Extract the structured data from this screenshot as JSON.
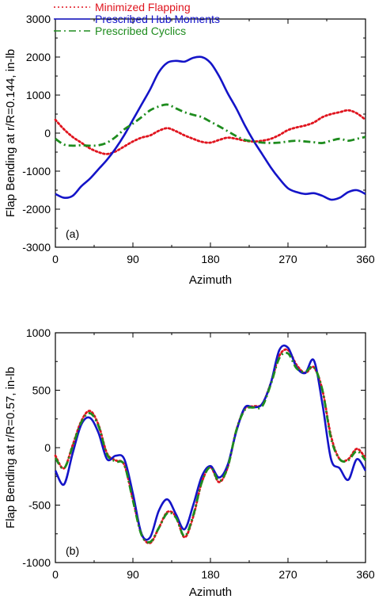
{
  "chart_data": [
    {
      "type": "line",
      "panel_label": "(a)",
      "xlabel": "Azimuth",
      "ylabel": "Flap Bending at r/R=0.144, in-lb",
      "xlim": [
        0,
        360
      ],
      "ylim": [
        -3000,
        3000
      ],
      "x_ticks": [
        0,
        90,
        180,
        270,
        360
      ],
      "y_ticks": [
        -3000,
        -2000,
        -1000,
        0,
        1000,
        2000,
        3000
      ],
      "legend_position": "top-left",
      "series": [
        {
          "name": "Minimized Flapping",
          "color": "#e0141e",
          "style": "dotted",
          "x": [
            0,
            10,
            20,
            30,
            40,
            50,
            60,
            70,
            80,
            90,
            100,
            110,
            120,
            130,
            140,
            150,
            160,
            170,
            180,
            190,
            200,
            210,
            220,
            230,
            240,
            250,
            260,
            270,
            280,
            290,
            300,
            310,
            320,
            330,
            340,
            350,
            360
          ],
          "y": [
            350,
            100,
            -100,
            -250,
            -400,
            -500,
            -550,
            -480,
            -350,
            -220,
            -120,
            -60,
            60,
            130,
            50,
            -60,
            -150,
            -230,
            -250,
            -180,
            -120,
            -150,
            -200,
            -220,
            -200,
            -150,
            -50,
            80,
            150,
            200,
            280,
            420,
            500,
            550,
            600,
            520,
            350
          ]
        },
        {
          "name": "Prescribed Hub Moments",
          "color": "#1414c8",
          "style": "solid",
          "x": [
            0,
            10,
            20,
            30,
            40,
            50,
            60,
            70,
            80,
            90,
            100,
            110,
            120,
            130,
            140,
            150,
            160,
            170,
            180,
            190,
            200,
            210,
            220,
            230,
            240,
            250,
            260,
            270,
            280,
            290,
            300,
            310,
            320,
            330,
            340,
            350,
            360
          ],
          "y": [
            -1600,
            -1700,
            -1650,
            -1400,
            -1200,
            -950,
            -700,
            -400,
            -50,
            350,
            750,
            1150,
            1600,
            1850,
            1900,
            1880,
            1980,
            2000,
            1850,
            1500,
            1050,
            650,
            200,
            -200,
            -550,
            -900,
            -1200,
            -1450,
            -1550,
            -1600,
            -1580,
            -1650,
            -1750,
            -1700,
            -1550,
            -1500,
            -1600
          ]
        },
        {
          "name": "Prescribed Cyclics",
          "color": "#1e8c1e",
          "style": "dashdot",
          "x": [
            0,
            10,
            20,
            30,
            40,
            50,
            60,
            70,
            80,
            90,
            100,
            110,
            120,
            130,
            140,
            150,
            160,
            170,
            180,
            190,
            200,
            210,
            220,
            230,
            240,
            250,
            260,
            270,
            280,
            290,
            300,
            310,
            320,
            330,
            340,
            350,
            360
          ],
          "y": [
            -150,
            -300,
            -330,
            -320,
            -330,
            -320,
            -250,
            -100,
            100,
            250,
            420,
            600,
            700,
            750,
            650,
            550,
            480,
            420,
            300,
            180,
            50,
            -80,
            -180,
            -220,
            -250,
            -260,
            -250,
            -220,
            -200,
            -220,
            -240,
            -260,
            -200,
            -150,
            -200,
            -150,
            -100
          ]
        }
      ]
    },
    {
      "type": "line",
      "panel_label": "(b)",
      "xlabel": "Azimuth",
      "ylabel": "Flap Bending at r/R=0.57, in-lb",
      "xlim": [
        0,
        360
      ],
      "ylim": [
        -1000,
        1000
      ],
      "x_ticks": [
        0,
        90,
        180,
        270,
        360
      ],
      "y_ticks": [
        -1000,
        -500,
        0,
        500,
        1000
      ],
      "series": [
        {
          "name": "Minimized Flapping",
          "color": "#e0141e",
          "style": "dotted",
          "x": [
            0,
            10,
            20,
            30,
            40,
            50,
            60,
            70,
            80,
            90,
            100,
            110,
            120,
            130,
            140,
            150,
            160,
            170,
            180,
            190,
            200,
            210,
            220,
            230,
            240,
            250,
            260,
            270,
            280,
            290,
            300,
            310,
            320,
            330,
            340,
            350,
            360
          ],
          "y": [
            -70,
            -180,
            20,
            230,
            320,
            200,
            -50,
            -110,
            -150,
            -450,
            -750,
            -830,
            -700,
            -560,
            -600,
            -780,
            -600,
            -300,
            -170,
            -300,
            -170,
            150,
            340,
            360,
            380,
            560,
            800,
            850,
            720,
            650,
            700,
            500,
            100,
            -100,
            -100,
            -10,
            -90
          ]
        },
        {
          "name": "Prescribed Hub Moments",
          "color": "#1414c8",
          "style": "solid",
          "x": [
            0,
            10,
            20,
            30,
            40,
            50,
            60,
            70,
            80,
            90,
            100,
            110,
            120,
            130,
            140,
            150,
            160,
            170,
            180,
            190,
            200,
            210,
            220,
            230,
            240,
            250,
            260,
            270,
            280,
            290,
            300,
            310,
            320,
            330,
            340,
            350,
            360
          ],
          "y": [
            -200,
            -320,
            -50,
            200,
            260,
            130,
            -100,
            -70,
            -100,
            -400,
            -750,
            -780,
            -550,
            -450,
            -580,
            -710,
            -500,
            -250,
            -160,
            -260,
            -150,
            140,
            350,
            350,
            380,
            560,
            850,
            870,
            700,
            650,
            760,
            380,
            -100,
            -180,
            -280,
            -100,
            -200
          ]
        },
        {
          "name": "Prescribed Cyclics",
          "color": "#1e8c1e",
          "style": "dashdot",
          "x": [
            0,
            10,
            20,
            30,
            40,
            50,
            60,
            70,
            80,
            90,
            100,
            110,
            120,
            130,
            140,
            150,
            160,
            170,
            180,
            190,
            200,
            210,
            220,
            230,
            240,
            250,
            260,
            270,
            280,
            290,
            300,
            310,
            320,
            330,
            340,
            350,
            360
          ],
          "y": [
            -90,
            -180,
            10,
            220,
            300,
            190,
            -60,
            -120,
            -150,
            -460,
            -760,
            -820,
            -700,
            -570,
            -610,
            -770,
            -590,
            -300,
            -170,
            -290,
            -170,
            150,
            330,
            350,
            360,
            550,
            780,
            820,
            690,
            660,
            700,
            500,
            80,
            -100,
            -110,
            -30,
            -110
          ]
        }
      ]
    }
  ]
}
